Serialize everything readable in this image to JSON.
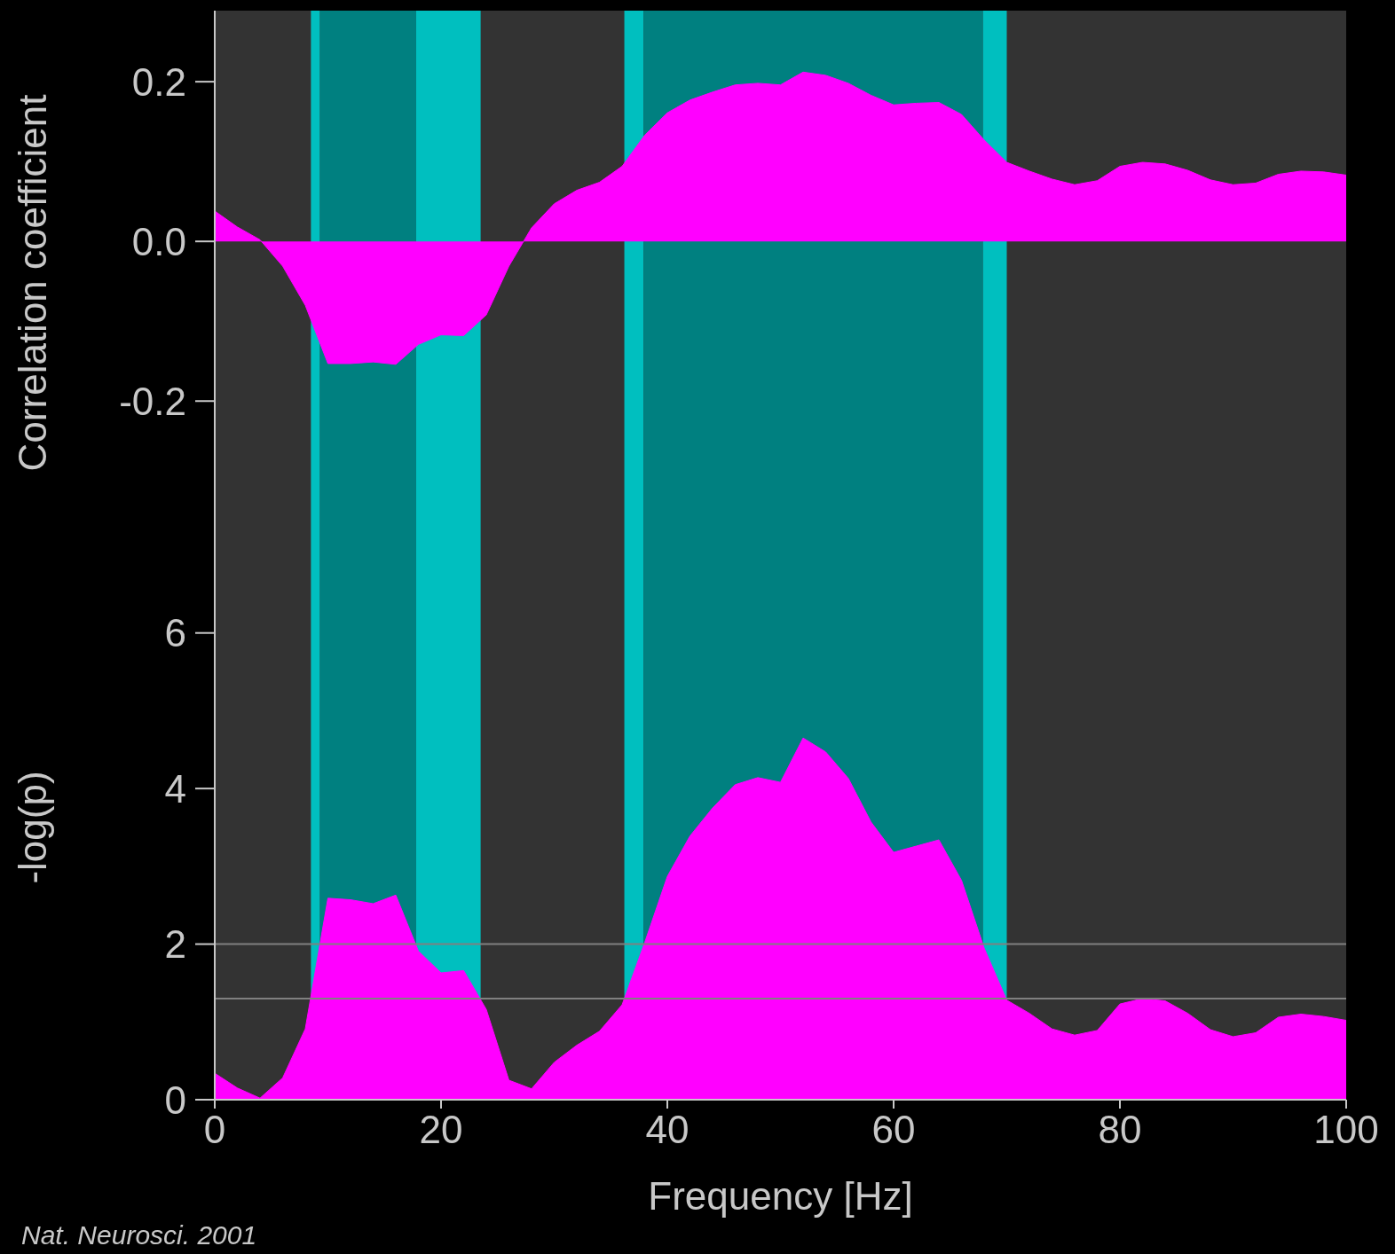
{
  "chart_data": [
    {
      "type": "area",
      "ylabel": "Correlation coefficient",
      "x": [
        0,
        2,
        4,
        6,
        8,
        10,
        12,
        14,
        16,
        18,
        20,
        22,
        24,
        26,
        28,
        30,
        32,
        34,
        36,
        38,
        40,
        42,
        44,
        46,
        48,
        50,
        52,
        54,
        56,
        58,
        60,
        62,
        64,
        66,
        68,
        70,
        72,
        74,
        76,
        78,
        80,
        82,
        84,
        86,
        88,
        90,
        92,
        94,
        96,
        98,
        100
      ],
      "series": [
        {
          "color": "#ff00ff",
          "values": [
            0.038,
            0.018,
            0.002,
            -0.031,
            -0.08,
            -0.153,
            -0.153,
            -0.151,
            -0.154,
            -0.129,
            -0.117,
            -0.118,
            -0.092,
            -0.031,
            0.017,
            0.047,
            0.064,
            0.074,
            0.094,
            0.133,
            0.161,
            0.177,
            0.187,
            0.196,
            0.198,
            0.196,
            0.212,
            0.208,
            0.198,
            0.183,
            0.171,
            0.173,
            0.174,
            0.159,
            0.127,
            0.099,
            0.088,
            0.078,
            0.071,
            0.076,
            0.094,
            0.099,
            0.097,
            0.089,
            0.077,
            0.071,
            0.073,
            0.084,
            0.088,
            0.087,
            0.083
          ]
        }
      ],
      "xlim": [
        0,
        100
      ],
      "ylim": [
        -0.393,
        0.289
      ],
      "yticks": [
        {
          "value": -0.2,
          "label": "-0.2"
        },
        {
          "value": 0,
          "label": "0.0"
        },
        {
          "value": 0.2,
          "label": "0.2"
        }
      ],
      "tick_labels": "y",
      "grid": false,
      "legend": false,
      "bands": [
        {
          "axis": "x",
          "from": 8.5,
          "to": 9.3,
          "color": "#00bfbf"
        },
        {
          "axis": "x",
          "from": 9.3,
          "to": 17.8,
          "color": "#008080"
        },
        {
          "axis": "x",
          "from": 17.8,
          "to": 23.5,
          "color": "#00bfbf"
        },
        {
          "axis": "x",
          "from": 36.2,
          "to": 37.9,
          "color": "#00bfbf"
        },
        {
          "axis": "x",
          "from": 37.9,
          "to": 67.9,
          "color": "#008080"
        },
        {
          "axis": "x",
          "from": 67.9,
          "to": 70,
          "color": "#00bfbf"
        }
      ]
    },
    {
      "type": "area",
      "ylabel": "-log(p)",
      "xlabel": "Frequency [Hz]",
      "x": [
        0,
        2,
        4,
        6,
        8,
        10,
        12,
        14,
        16,
        18,
        20,
        22,
        24,
        26,
        28,
        30,
        32,
        34,
        36,
        38,
        40,
        42,
        44,
        46,
        48,
        50,
        52,
        54,
        56,
        58,
        60,
        62,
        64,
        66,
        68,
        70,
        72,
        74,
        76,
        78,
        80,
        82,
        84,
        86,
        88,
        90,
        92,
        94,
        96,
        98,
        100
      ],
      "series": [
        {
          "color": "#ff00ff",
          "values": [
            0.34,
            0.15,
            0.02,
            0.28,
            0.91,
            2.59,
            2.57,
            2.52,
            2.63,
            1.91,
            1.63,
            1.66,
            1.16,
            0.25,
            0.14,
            0.48,
            0.7,
            0.88,
            1.22,
            2.02,
            2.87,
            3.39,
            3.75,
            4.05,
            4.14,
            4.08,
            4.65,
            4.47,
            4.13,
            3.57,
            3.18,
            3.26,
            3.34,
            2.82,
            1.95,
            1.28,
            1.11,
            0.91,
            0.83,
            0.89,
            1.23,
            1.3,
            1.27,
            1.11,
            0.9,
            0.81,
            0.86,
            1.06,
            1.1,
            1.07,
            1.02
          ]
        }
      ],
      "xlim": [
        0,
        100
      ],
      "xticks": [
        0,
        20,
        40,
        60,
        80,
        100
      ],
      "ylim": [
        0,
        7
      ],
      "yticks": [
        0,
        2,
        4,
        6
      ],
      "grid": false,
      "legend": false,
      "bands": [
        {
          "axis": "x",
          "from": 8.5,
          "to": 9.3,
          "color": "#00bfbf"
        },
        {
          "axis": "x",
          "from": 9.3,
          "to": 17.8,
          "color": "#008080"
        },
        {
          "axis": "x",
          "from": 17.8,
          "to": 23.5,
          "color": "#00bfbf"
        },
        {
          "axis": "x",
          "from": 36.2,
          "to": 37.9,
          "color": "#00bfbf"
        },
        {
          "axis": "x",
          "from": 37.9,
          "to": 67.9,
          "color": "#008080"
        },
        {
          "axis": "x",
          "from": 67.9,
          "to": 70,
          "color": "#00bfbf"
        }
      ],
      "ref_lines": [
        {
          "axis": "y",
          "value": 2,
          "color": "#808080"
        },
        {
          "axis": "y",
          "value": 1.3,
          "color": "#808080"
        }
      ],
      "annotations": [
        "Nat. Neurosci. 2001"
      ]
    }
  ]
}
